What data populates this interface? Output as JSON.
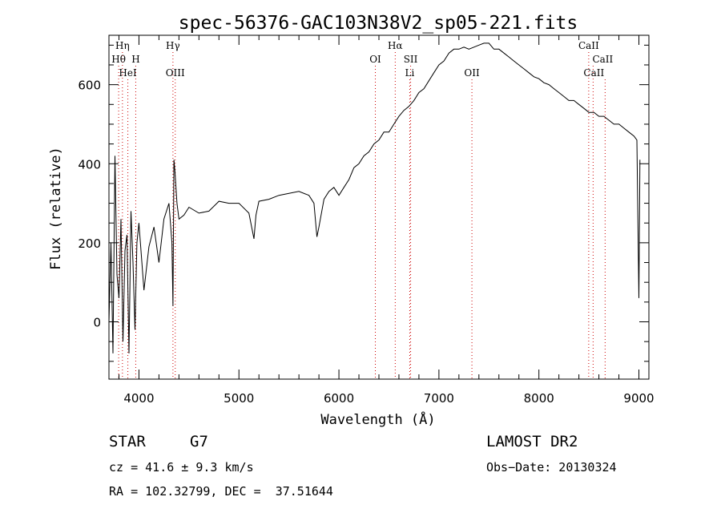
{
  "chart_data": {
    "type": "line",
    "title": "spec-56376-GAC103N38V2_sp05-221.fits",
    "xlabel": "Wavelength (Å)",
    "ylabel": "Flux (relative)",
    "xlim": [
      3700,
      9100
    ],
    "ylim": [
      -145,
      725
    ],
    "x_ticks": [
      4000,
      5000,
      6000,
      7000,
      8000,
      9000
    ],
    "x_tick_labels": [
      "4000",
      "5000",
      "6000",
      "7000",
      "8000",
      "9000"
    ],
    "y_ticks": [
      0,
      200,
      400,
      600
    ],
    "y_tick_labels": [
      "0",
      "200",
      "400",
      "600"
    ],
    "grid": false,
    "line_color": "#000000",
    "marker_color": "#cc0000",
    "spectrum": {
      "x": [
        3700,
        3720,
        3740,
        3760,
        3780,
        3800,
        3820,
        3840,
        3860,
        3880,
        3900,
        3920,
        3940,
        3960,
        3980,
        4000,
        4050,
        4100,
        4150,
        4200,
        4250,
        4300,
        4330,
        4340,
        4350,
        4360,
        4380,
        4400,
        4450,
        4500,
        4600,
        4700,
        4800,
        4900,
        5000,
        5100,
        5150,
        5170,
        5200,
        5300,
        5400,
        5500,
        5600,
        5700,
        5750,
        5780,
        5800,
        5850,
        5900,
        5950,
        6000,
        6050,
        6100,
        6150,
        6200,
        6250,
        6300,
        6350,
        6400,
        6450,
        6500,
        6550,
        6600,
        6650,
        6700,
        6750,
        6800,
        6850,
        6900,
        6950,
        7000,
        7050,
        7100,
        7150,
        7200,
        7250,
        7300,
        7350,
        7400,
        7450,
        7500,
        7550,
        7600,
        7650,
        7700,
        7750,
        7800,
        7850,
        7900,
        7950,
        8000,
        8050,
        8100,
        8150,
        8200,
        8250,
        8300,
        8350,
        8400,
        8450,
        8500,
        8550,
        8600,
        8650,
        8700,
        8750,
        8800,
        8850,
        8900,
        8950,
        8980,
        9000,
        9010
      ],
      "y": [
        0,
        200,
        -80,
        420,
        120,
        60,
        260,
        -50,
        180,
        220,
        -80,
        280,
        150,
        -20,
        200,
        250,
        80,
        190,
        240,
        150,
        260,
        300,
        200,
        40,
        410,
        380,
        300,
        260,
        270,
        290,
        275,
        280,
        305,
        300,
        300,
        275,
        210,
        270,
        305,
        310,
        320,
        325,
        330,
        320,
        300,
        215,
        240,
        310,
        330,
        340,
        320,
        340,
        360,
        390,
        400,
        420,
        430,
        450,
        460,
        480,
        480,
        500,
        520,
        535,
        545,
        560,
        580,
        590,
        610,
        630,
        650,
        660,
        680,
        690,
        690,
        695,
        690,
        695,
        700,
        705,
        705,
        690,
        690,
        680,
        670,
        660,
        650,
        640,
        630,
        620,
        615,
        605,
        600,
        590,
        580,
        570,
        560,
        560,
        550,
        540,
        530,
        530,
        520,
        520,
        510,
        500,
        500,
        490,
        480,
        470,
        460,
        60,
        410
      ]
    },
    "line_markers": [
      {
        "label": "Hη",
        "x": 3835
      },
      {
        "label": "Hθ",
        "x": 3797
      },
      {
        "label": "H",
        "x": 3968
      },
      {
        "label": "HeI",
        "x": 3889
      },
      {
        "label": "Hγ",
        "x": 4340
      },
      {
        "label": "OIII",
        "x": 4363
      },
      {
        "label": "OI",
        "x": 6364
      },
      {
        "label": "Hα",
        "x": 6563
      },
      {
        "label": "SII",
        "x": 6717
      },
      {
        "label": "Li",
        "x": 6708
      },
      {
        "label": "OII",
        "x": 7330
      },
      {
        "label": "CaII",
        "x": 8498
      },
      {
        "label": "CaII",
        "x": 8542
      },
      {
        "label": "CaII",
        "x": 8662
      }
    ]
  },
  "footer": {
    "object_class": "STAR",
    "subclass": "G7",
    "survey": "LAMOST DR2",
    "redshift": "cz = 41.6 ± 9.3 km/s",
    "obs_date": "Obs−Date: 20130324",
    "coords": "RA = 102.32799, DEC =  37.51644"
  }
}
